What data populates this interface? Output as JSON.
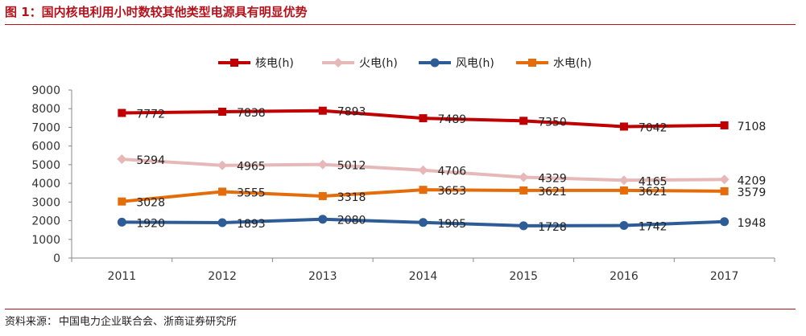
{
  "figure_title": "图 1：国内核电利用小时数较其他类型电源具有明显优势",
  "source_label": "资料来源：",
  "source_text": "中国电力企业联合会、浙商证券研究所",
  "chart_data": {
    "type": "line",
    "title": "",
    "xlabel": "",
    "ylabel": "",
    "categories": [
      "2011",
      "2012",
      "2013",
      "2014",
      "2015",
      "2016",
      "2017"
    ],
    "ylim": [
      0,
      9000
    ],
    "yticks": [
      0,
      1000,
      2000,
      3000,
      4000,
      5000,
      6000,
      7000,
      8000,
      9000
    ],
    "grid": false,
    "legend_position": "top",
    "series": [
      {
        "name": "核电(h)",
        "color": "#c00000",
        "marker": "square",
        "values": [
          7772,
          7838,
          7893,
          7489,
          7350,
          7042,
          7108
        ]
      },
      {
        "name": "火电(h)",
        "color": "#e6b8b7",
        "marker": "diamond",
        "values": [
          5294,
          4965,
          5012,
          4706,
          4329,
          4165,
          4209
        ]
      },
      {
        "name": "风电(h)",
        "color": "#2e5c96",
        "marker": "circle",
        "values": [
          1920,
          1893,
          2080,
          1905,
          1728,
          1742,
          1948
        ]
      },
      {
        "name": "水电(h)",
        "color": "#e46c0a",
        "marker": "square",
        "values": [
          3028,
          3555,
          3318,
          3653,
          3621,
          3621,
          3579
        ]
      }
    ]
  }
}
